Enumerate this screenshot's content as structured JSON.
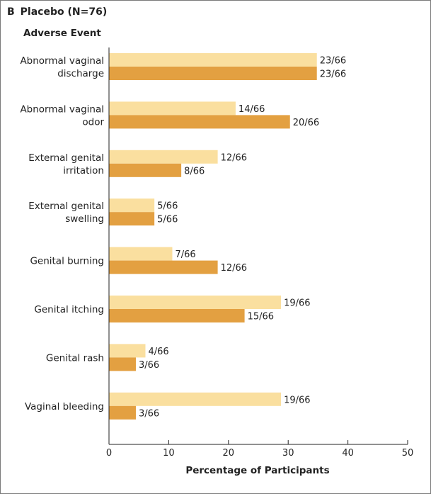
{
  "panel": {
    "letter": "B",
    "title": "Placebo (N=76)",
    "category_header": "Adverse Event"
  },
  "colors": {
    "series_light": "#fadf9f",
    "series_dark": "#e3a041",
    "axis": "#222222"
  },
  "chart_data": {
    "type": "bar",
    "orientation": "horizontal",
    "categories": [
      [
        "Abnormal vaginal",
        "discharge"
      ],
      [
        "Abnormal vaginal",
        "odor"
      ],
      [
        "External genital",
        "irritation"
      ],
      [
        "External genital",
        "swelling"
      ],
      [
        "Genital burning"
      ],
      [
        "Genital itching"
      ],
      [
        "Genital rash"
      ],
      [
        "Vaginal bleeding"
      ]
    ],
    "series": [
      {
        "name": "light",
        "color": "#fadf9f",
        "values": [
          34.8,
          21.2,
          18.2,
          7.6,
          10.6,
          28.8,
          6.1,
          28.8
        ],
        "labels": [
          "23/66",
          "14/66",
          "12/66",
          "5/66",
          "7/66",
          "19/66",
          "4/66",
          "19/66"
        ]
      },
      {
        "name": "dark",
        "color": "#e3a041",
        "values": [
          34.8,
          30.3,
          12.1,
          7.6,
          18.2,
          22.7,
          4.5,
          4.5
        ],
        "labels": [
          "23/66",
          "20/66",
          "8/66",
          "5/66",
          "12/66",
          "15/66",
          "3/66",
          "3/66"
        ]
      }
    ],
    "xlabel": "Percentage of Participants",
    "xlim": [
      0,
      50
    ],
    "xticks": [
      0,
      10,
      20,
      30,
      40,
      50
    ],
    "xtick_labels": [
      "0",
      "10",
      "20",
      "30",
      "40",
      "50"
    ]
  }
}
